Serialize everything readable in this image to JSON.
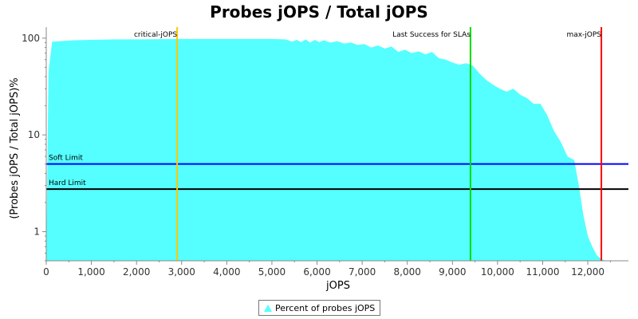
{
  "chart_data": {
    "type": "area",
    "title": "Probes jOPS / Total jOPS",
    "xlabel": "jOPS",
    "ylabel": "(Probes jOPS / Total jOPS)%",
    "x_scale": "linear",
    "y_scale": "log",
    "xlim": [
      0,
      12900
    ],
    "ylim": [
      0.5,
      130
    ],
    "x_ticks": [
      0,
      1000,
      2000,
      3000,
      4000,
      5000,
      6000,
      7000,
      8000,
      9000,
      10000,
      11000,
      12000
    ],
    "x_tick_labels": [
      "0",
      "1,000",
      "2,000",
      "3,000",
      "4,000",
      "5,000",
      "6,000",
      "7,000",
      "8,000",
      "9,000",
      "10,000",
      "11,000",
      "12,000"
    ],
    "y_ticks": [
      1,
      10,
      100
    ],
    "y_tick_labels": [
      "1",
      "10",
      "100"
    ],
    "grid": false,
    "legend_position": "bottom",
    "series": [
      {
        "name": "Percent of probes jOPS",
        "color": "#55FFFF",
        "x": [
          0,
          50,
          130,
          300,
          600,
          1000,
          1500,
          2000,
          2900,
          3500,
          4000,
          4500,
          5000,
          5300,
          5450,
          5550,
          5650,
          5750,
          5850,
          5950,
          6050,
          6150,
          6300,
          6450,
          6600,
          6750,
          6900,
          7050,
          7200,
          7350,
          7500,
          7650,
          7800,
          7950,
          8100,
          8250,
          8400,
          8550,
          8700,
          8850,
          9000,
          9150,
          9300,
          9450,
          9600,
          9750,
          9900,
          10050,
          10200,
          10350,
          10500,
          10650,
          10800,
          10950,
          11100,
          11250,
          11400,
          11550,
          11700,
          11800,
          11900,
          12000,
          12100,
          12200,
          12300,
          12400,
          12550,
          12700
        ],
        "y": [
          0.5,
          45,
          92,
          93,
          95,
          96,
          97,
          97,
          98,
          98,
          98,
          98,
          98,
          97,
          92,
          96,
          91,
          97,
          90,
          96,
          91,
          95,
          90,
          93,
          88,
          90,
          85,
          87,
          80,
          84,
          78,
          82,
          72,
          76,
          70,
          73,
          68,
          72,
          62,
          60,
          56,
          53,
          55,
          52,
          43,
          37,
          33,
          30,
          28,
          30,
          26,
          24,
          21,
          21,
          16,
          11,
          8.5,
          6,
          5.5,
          3,
          1.5,
          0.9,
          0.7,
          0.57,
          0.52,
          0.5,
          0.5,
          0.5
        ]
      }
    ],
    "vertical_markers": [
      {
        "label": "critical-jOPS",
        "x": 2900,
        "color": "#FFC800"
      },
      {
        "label": "Last Success for SLAs",
        "x": 9400,
        "color": "#00DD00"
      },
      {
        "label": "max-jOPS",
        "x": 12300,
        "color": "#FF0000"
      }
    ],
    "horizontal_markers": [
      {
        "label": "Soft Limit",
        "y": 5,
        "color": "#0000FF"
      },
      {
        "label": "Hard Limit",
        "y": 2.75,
        "color": "#000000"
      }
    ]
  }
}
